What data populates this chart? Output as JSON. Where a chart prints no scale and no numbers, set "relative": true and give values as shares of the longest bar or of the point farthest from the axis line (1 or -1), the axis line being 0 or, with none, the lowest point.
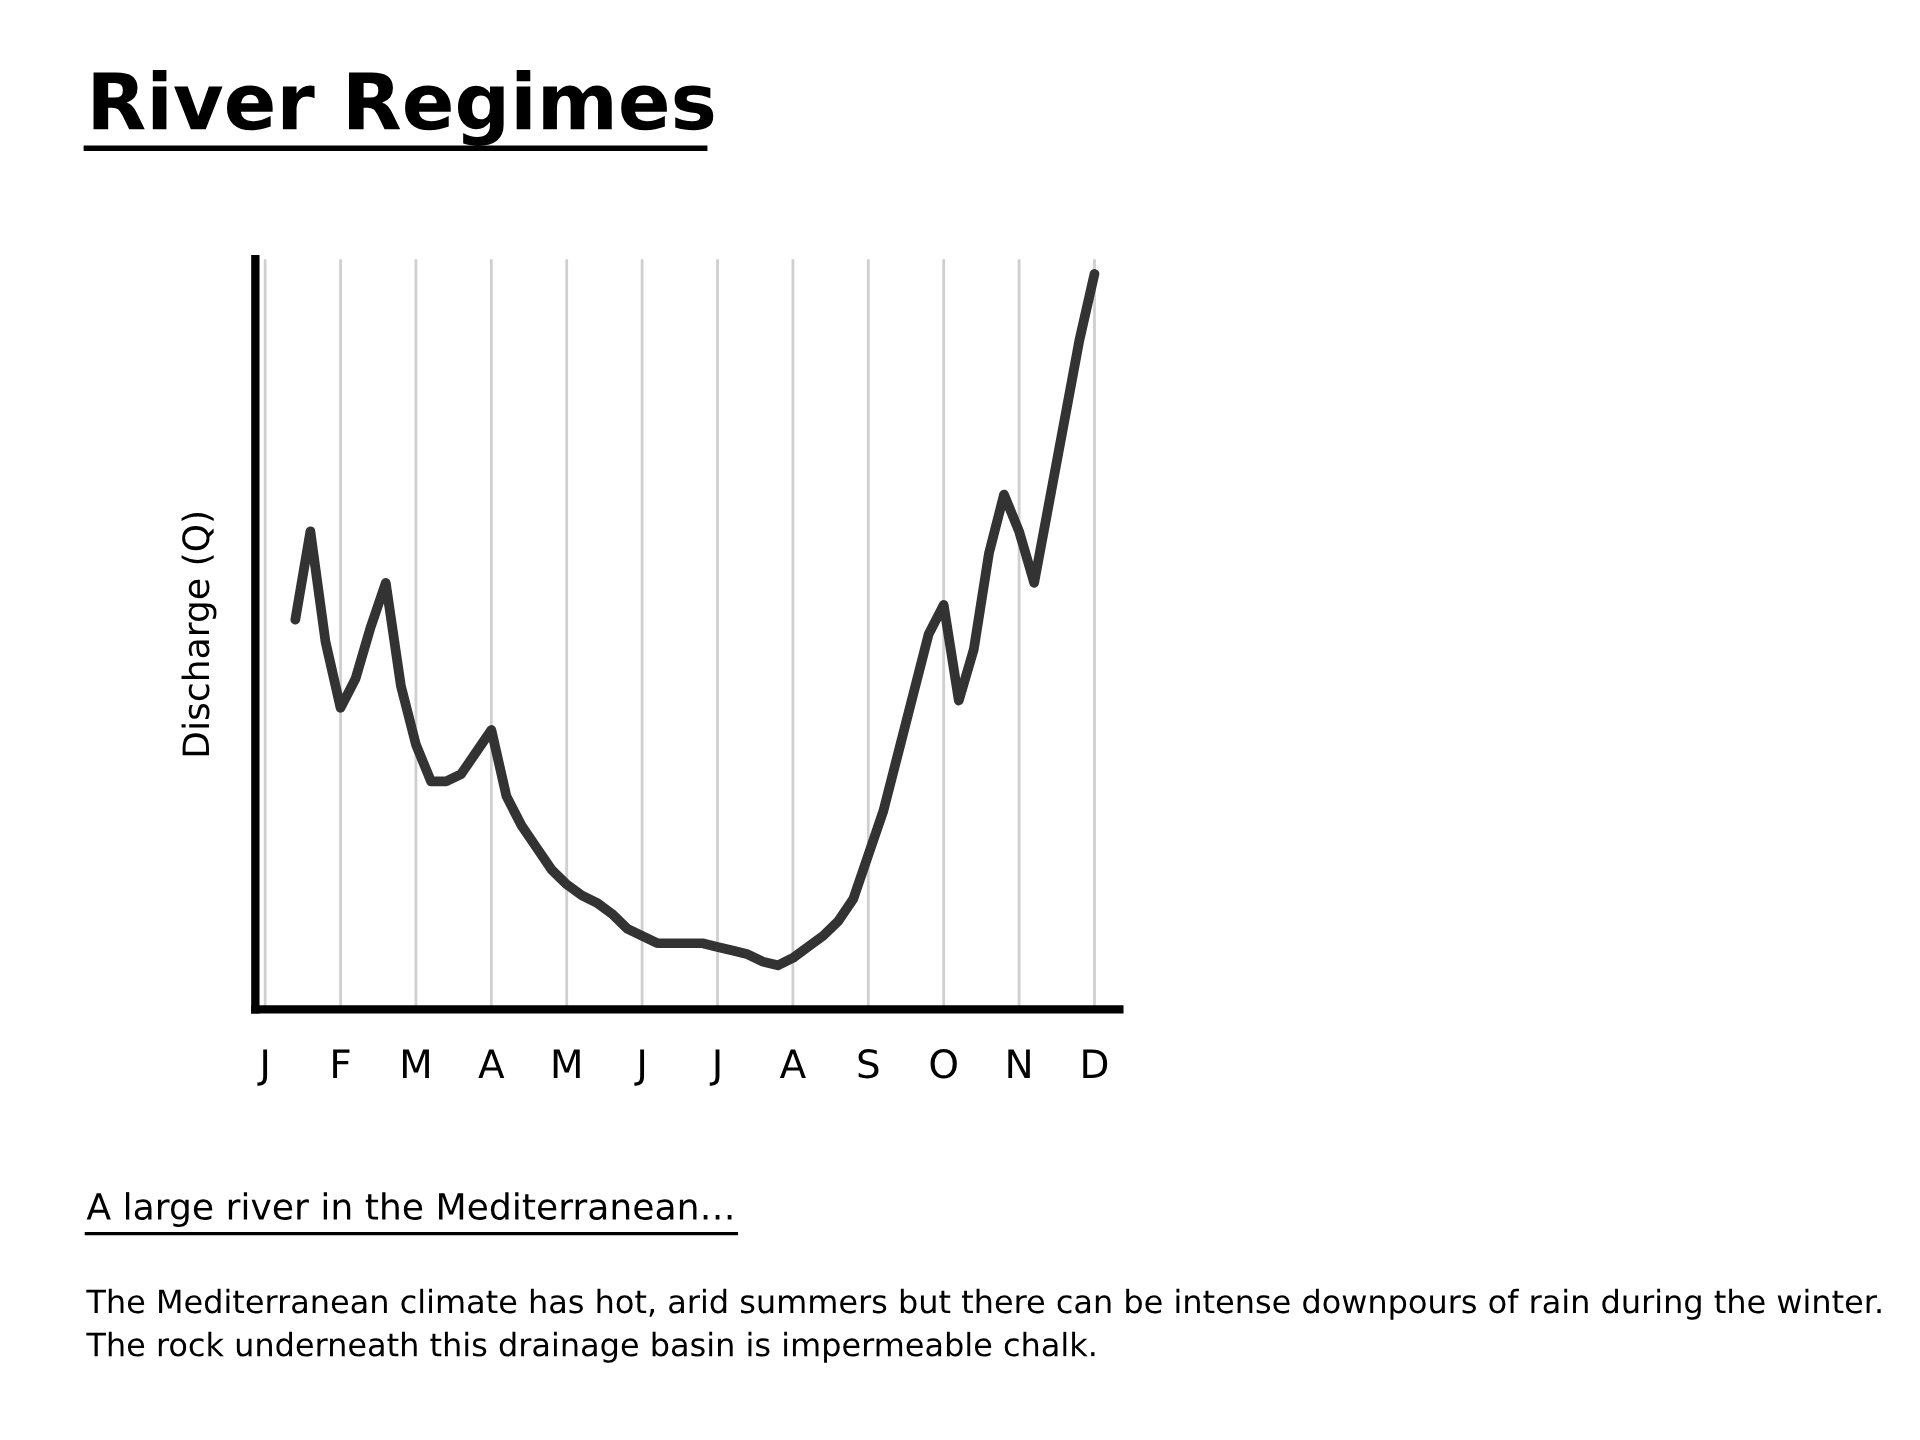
{
  "chart_data": {
    "type": "line",
    "title": "River Regimes",
    "ylabel": "Discharge (Q)",
    "relative": true,
    "grid": true,
    "marker": "none",
    "line_style": "solid",
    "categories": [
      "J",
      null,
      null,
      null,
      null,
      "F",
      null,
      null,
      null,
      null,
      "M",
      null,
      null,
      null,
      null,
      "A",
      null,
      null,
      null,
      null,
      "M",
      null,
      null,
      null,
      null,
      "J",
      null,
      null,
      null,
      null,
      "J",
      null,
      null,
      null,
      null,
      "A",
      null,
      null,
      null,
      null,
      "S",
      null,
      null,
      null,
      null,
      "O",
      null,
      null,
      null,
      null,
      "N",
      null,
      null,
      null,
      null,
      "D"
    ],
    "annotations": [
      "A large river in the Mediterranean…",
      "The Mediterranean climate has hot, arid summers but there can be intense downpours of rain during the winter. The rock underneath this drainage basin is impermeable chalk."
    ],
    "series": [
      {
        "color": "#333333",
        "values": [
          null,
          null,
          0.53,
          0.65,
          0.5,
          0.41,
          0.45,
          0.52,
          0.58,
          0.44,
          0.36,
          0.31,
          0.31,
          0.32,
          0.35,
          0.38,
          0.29,
          0.25,
          0.22,
          0.19,
          0.17,
          0.155,
          0.145,
          0.13,
          0.11,
          0.1,
          0.09,
          0.09,
          0.09,
          0.09,
          0.085,
          0.08,
          0.075,
          0.065,
          0.06,
          0.07,
          0.085,
          0.1,
          0.12,
          0.15,
          0.21,
          0.27,
          0.35,
          0.43,
          0.51,
          0.55,
          0.42,
          0.49,
          0.62,
          0.7,
          0.65,
          0.58,
          0.69,
          0.8,
          0.91,
          1.0
        ]
      }
    ]
  }
}
